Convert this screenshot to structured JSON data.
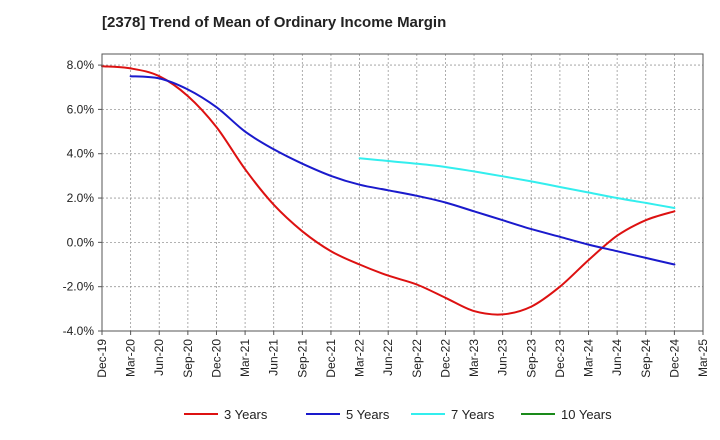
{
  "chart_data": {
    "type": "line",
    "title": "[2378]  Trend of Mean of Ordinary Income Margin",
    "xlabel": "",
    "ylabel": "",
    "ylim": [
      -4.0,
      8.5
    ],
    "y_ticks": [
      {
        "value": 8.0,
        "label": "8.0%"
      },
      {
        "value": 6.0,
        "label": "6.0%"
      },
      {
        "value": 4.0,
        "label": "4.0%"
      },
      {
        "value": 2.0,
        "label": "2.0%"
      },
      {
        "value": 0.0,
        "label": "0.0%"
      },
      {
        "value": -2.0,
        "label": "-2.0%"
      },
      {
        "value": -4.0,
        "label": "-4.0%"
      }
    ],
    "x_ticks": [
      "Dec-19",
      "Mar-20",
      "Jun-20",
      "Sep-20",
      "Dec-20",
      "Mar-21",
      "Jun-21",
      "Sep-21",
      "Dec-21",
      "Mar-22",
      "Jun-22",
      "Sep-22",
      "Dec-22",
      "Mar-23",
      "Jun-23",
      "Sep-23",
      "Dec-23",
      "Mar-24",
      "Jun-24",
      "Sep-24",
      "Dec-24",
      "Mar-25"
    ],
    "grid": true,
    "legend_position": "bottom",
    "series": [
      {
        "name": "3 Years",
        "color": "#dd1111",
        "points": [
          [
            "Dec-19",
            7.95
          ],
          [
            "Mar-20",
            7.85
          ],
          [
            "Jun-20",
            7.5
          ],
          [
            "Sep-20",
            6.6
          ],
          [
            "Dec-20",
            5.2
          ],
          [
            "Mar-21",
            3.3
          ],
          [
            "Jun-21",
            1.7
          ],
          [
            "Sep-21",
            0.5
          ],
          [
            "Dec-21",
            -0.4
          ],
          [
            "Mar-22",
            -1.0
          ],
          [
            "Jun-22",
            -1.5
          ],
          [
            "Sep-22",
            -1.9
          ],
          [
            "Dec-22",
            -2.5
          ],
          [
            "Mar-23",
            -3.1
          ],
          [
            "Jun-23",
            -3.25
          ],
          [
            "Sep-23",
            -2.9
          ],
          [
            "Dec-23",
            -2.0
          ],
          [
            "Mar-24",
            -0.8
          ],
          [
            "Jun-24",
            0.3
          ],
          [
            "Sep-24",
            1.0
          ],
          [
            "Dec-24",
            1.4
          ]
        ]
      },
      {
        "name": "5 Years",
        "color": "#1a1acc",
        "points": [
          [
            "Mar-20",
            7.5
          ],
          [
            "Jun-20",
            7.4
          ],
          [
            "Sep-20",
            6.9
          ],
          [
            "Dec-20",
            6.1
          ],
          [
            "Mar-21",
            5.0
          ],
          [
            "Jun-21",
            4.2
          ],
          [
            "Sep-21",
            3.55
          ],
          [
            "Dec-21",
            3.0
          ],
          [
            "Mar-22",
            2.6
          ],
          [
            "Jun-22",
            2.35
          ],
          [
            "Sep-22",
            2.1
          ],
          [
            "Dec-22",
            1.8
          ],
          [
            "Mar-23",
            1.4
          ],
          [
            "Jun-23",
            1.0
          ],
          [
            "Sep-23",
            0.6
          ],
          [
            "Dec-23",
            0.25
          ],
          [
            "Mar-24",
            -0.1
          ],
          [
            "Jun-24",
            -0.4
          ],
          [
            "Sep-24",
            -0.7
          ],
          [
            "Dec-24",
            -1.0
          ]
        ]
      },
      {
        "name": "7 Years",
        "color": "#33eeee",
        "points": [
          [
            "Mar-22",
            3.8
          ],
          [
            "Jun-22",
            3.67
          ],
          [
            "Sep-22",
            3.55
          ],
          [
            "Dec-22",
            3.4
          ],
          [
            "Mar-23",
            3.2
          ],
          [
            "Jun-23",
            2.98
          ],
          [
            "Sep-23",
            2.75
          ],
          [
            "Dec-23",
            2.5
          ],
          [
            "Mar-24",
            2.25
          ],
          [
            "Jun-24",
            2.0
          ],
          [
            "Sep-24",
            1.78
          ],
          [
            "Dec-24",
            1.55
          ]
        ]
      },
      {
        "name": "10 Years",
        "color": "#1a8a1a",
        "points": []
      }
    ]
  }
}
